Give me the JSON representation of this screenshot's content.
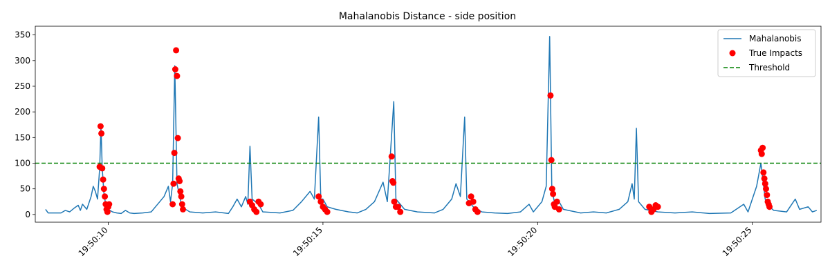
{
  "chart_data": {
    "type": "line",
    "title": "Mahalanobis Distance - side position",
    "xlabel": "",
    "ylabel": "",
    "x_unit": "time",
    "xlim": [
      "19:50:08.3",
      "19:50:26.6"
    ],
    "ylim": [
      -15,
      367
    ],
    "grid": false,
    "legend_placement": "top-right",
    "x_ticks": [
      "19:50:10",
      "19:50:15",
      "19:50:20",
      "19:50:25"
    ],
    "y_ticks": [
      0,
      50,
      100,
      150,
      200,
      250,
      300,
      350
    ],
    "colors": {
      "line": "#1f77b4",
      "impacts": "#ff0000",
      "threshold": "#008000"
    },
    "series": [
      {
        "name": "Mahalanobis",
        "kind": "line",
        "points": [
          [
            "19:50:08.54",
            10
          ],
          [
            "19:50:08.6",
            3
          ],
          [
            "19:50:08.9",
            3
          ],
          [
            "19:50:09.0",
            8
          ],
          [
            "19:50:09.1",
            5
          ],
          [
            "19:50:09.2",
            12
          ],
          [
            "19:50:09.3",
            18
          ],
          [
            "19:50:09.35",
            8
          ],
          [
            "19:50:09.4",
            20
          ],
          [
            "19:50:09.5",
            10
          ],
          [
            "19:50:09.6",
            35
          ],
          [
            "19:50:09.65",
            55
          ],
          [
            "19:50:09.7",
            45
          ],
          [
            "19:50:09.75",
            30
          ],
          [
            "19:50:09.8",
            90
          ],
          [
            "19:50:09.83",
            172
          ],
          [
            "19:50:09.86",
            90
          ],
          [
            "19:50:09.9",
            40
          ],
          [
            "19:50:09.95",
            15
          ],
          [
            "19:50:10.0",
            10
          ],
          [
            "19:50:10.1",
            5
          ],
          [
            "19:50:10.2",
            3
          ],
          [
            "19:50:10.3",
            2
          ],
          [
            "19:50:10.4",
            8
          ],
          [
            "19:50:10.5",
            3
          ],
          [
            "19:50:10.6",
            2
          ],
          [
            "19:50:10.8",
            3
          ],
          [
            "19:50:11.0",
            5
          ],
          [
            "19:50:11.1",
            15
          ],
          [
            "19:50:11.2",
            25
          ],
          [
            "19:50:11.3",
            35
          ],
          [
            "19:50:11.4",
            55
          ],
          [
            "19:50:11.45",
            25
          ],
          [
            "19:50:11.5",
            60
          ],
          [
            "19:50:11.55",
            290
          ],
          [
            "19:50:11.6",
            60
          ],
          [
            "19:50:11.65",
            40
          ],
          [
            "19:50:11.7",
            20
          ],
          [
            "19:50:11.8",
            10
          ],
          [
            "19:50:11.9",
            5
          ],
          [
            "19:50:12.2",
            3
          ],
          [
            "19:50:12.5",
            5
          ],
          [
            "19:50:12.8",
            2
          ],
          [
            "19:50:12.9",
            15
          ],
          [
            "19:50:13.0",
            30
          ],
          [
            "19:50:13.1",
            15
          ],
          [
            "19:50:13.2",
            35
          ],
          [
            "19:50:13.25",
            20
          ],
          [
            "19:50:13.3",
            133
          ],
          [
            "19:50:13.35",
            30
          ],
          [
            "19:50:13.5",
            20
          ],
          [
            "19:50:13.6",
            5
          ],
          [
            "19:50:14.0",
            3
          ],
          [
            "19:50:14.3",
            8
          ],
          [
            "19:50:14.5",
            25
          ],
          [
            "19:50:14.7",
            45
          ],
          [
            "19:50:14.8",
            30
          ],
          [
            "19:50:14.9",
            190
          ],
          [
            "19:50:14.95",
            30
          ],
          [
            "19:50:15.0",
            30
          ],
          [
            "19:50:15.1",
            15
          ],
          [
            "19:50:15.3",
            10
          ],
          [
            "19:50:15.6",
            5
          ],
          [
            "19:50:15.8",
            3
          ],
          [
            "19:50:16.0",
            10
          ],
          [
            "19:50:16.2",
            25
          ],
          [
            "19:50:16.4",
            63
          ],
          [
            "19:50:16.5",
            25
          ],
          [
            "19:50:16.65",
            220
          ],
          [
            "19:50:16.7",
            30
          ],
          [
            "19:50:16.9",
            10
          ],
          [
            "19:50:17.2",
            5
          ],
          [
            "19:50:17.6",
            3
          ],
          [
            "19:50:17.8",
            10
          ],
          [
            "19:50:18.0",
            30
          ],
          [
            "19:50:18.1",
            60
          ],
          [
            "19:50:18.2",
            35
          ],
          [
            "19:50:18.3",
            190
          ],
          [
            "19:50:18.35",
            30
          ],
          [
            "19:50:18.5",
            15
          ],
          [
            "19:50:18.7",
            5
          ],
          [
            "19:50:19.0",
            3
          ],
          [
            "19:50:19.3",
            2
          ],
          [
            "19:50:19.6",
            5
          ],
          [
            "19:50:19.8",
            20
          ],
          [
            "19:50:19.9",
            5
          ],
          [
            "19:50:20.1",
            25
          ],
          [
            "19:50:20.2",
            55
          ],
          [
            "19:50:20.28",
            347
          ],
          [
            "19:50:20.33",
            50
          ],
          [
            "19:50:20.4",
            20
          ],
          [
            "19:50:20.5",
            25
          ],
          [
            "19:50:20.6",
            10
          ],
          [
            "19:50:21.0",
            3
          ],
          [
            "19:50:21.3",
            5
          ],
          [
            "19:50:21.6",
            3
          ],
          [
            "19:50:21.9",
            10
          ],
          [
            "19:50:22.1",
            25
          ],
          [
            "19:50:22.2",
            60
          ],
          [
            "19:50:22.25",
            30
          ],
          [
            "19:50:22.3",
            168
          ],
          [
            "19:50:22.35",
            25
          ],
          [
            "19:50:22.5",
            10
          ],
          [
            "19:50:22.8",
            5
          ],
          [
            "19:50:23.2",
            3
          ],
          [
            "19:50:23.6",
            5
          ],
          [
            "19:50:24.0",
            2
          ],
          [
            "19:50:24.5",
            3
          ],
          [
            "19:50:24.8",
            20
          ],
          [
            "19:50:24.9",
            5
          ],
          [
            "19:50:25.0",
            30
          ],
          [
            "19:50:25.1",
            55
          ],
          [
            "19:50:25.2",
            100
          ],
          [
            "19:50:25.3",
            30
          ],
          [
            "19:50:25.4",
            15
          ],
          [
            "19:50:25.5",
            8
          ],
          [
            "19:50:25.8",
            5
          ],
          [
            "19:50:26.0",
            30
          ],
          [
            "19:50:26.1",
            10
          ],
          [
            "19:50:26.3",
            15
          ],
          [
            "19:50:26.4",
            5
          ],
          [
            "19:50:26.5",
            8
          ]
        ]
      },
      {
        "name": "True Impacts",
        "kind": "scatter",
        "points": [
          [
            "19:50:09.8",
            93
          ],
          [
            "19:50:09.82",
            172
          ],
          [
            "19:50:09.84",
            158
          ],
          [
            "19:50:09.86",
            90
          ],
          [
            "19:50:09.88",
            68
          ],
          [
            "19:50:09.9",
            50
          ],
          [
            "19:50:09.92",
            35
          ],
          [
            "19:50:09.94",
            20
          ],
          [
            "19:50:09.96",
            10
          ],
          [
            "19:50:09.98",
            5
          ],
          [
            "19:50:10.0",
            15
          ],
          [
            "19:50:10.02",
            20
          ],
          [
            "19:50:11.5",
            20
          ],
          [
            "19:50:11.52",
            60
          ],
          [
            "19:50:11.54",
            120
          ],
          [
            "19:50:11.56",
            283
          ],
          [
            "19:50:11.58",
            320
          ],
          [
            "19:50:11.6",
            270
          ],
          [
            "19:50:11.62",
            149
          ],
          [
            "19:50:11.64",
            70
          ],
          [
            "19:50:11.66",
            65
          ],
          [
            "19:50:11.68",
            45
          ],
          [
            "19:50:11.7",
            35
          ],
          [
            "19:50:11.72",
            20
          ],
          [
            "19:50:11.74",
            10
          ],
          [
            "19:50:13.3",
            25
          ],
          [
            "19:50:13.35",
            18
          ],
          [
            "19:50:13.4",
            10
          ],
          [
            "19:50:13.45",
            5
          ],
          [
            "19:50:13.5",
            25
          ],
          [
            "19:50:13.55",
            20
          ],
          [
            "19:50:14.9",
            35
          ],
          [
            "19:50:14.95",
            25
          ],
          [
            "19:50:15.0",
            15
          ],
          [
            "19:50:15.05",
            10
          ],
          [
            "19:50:15.1",
            5
          ],
          [
            "19:50:16.6",
            113
          ],
          [
            "19:50:16.62",
            65
          ],
          [
            "19:50:16.64",
            62
          ],
          [
            "19:50:16.66",
            25
          ],
          [
            "19:50:16.7",
            15
          ],
          [
            "19:50:16.75",
            15
          ],
          [
            "19:50:16.8",
            5
          ],
          [
            "19:50:18.4",
            22
          ],
          [
            "19:50:18.45",
            35
          ],
          [
            "19:50:18.5",
            25
          ],
          [
            "19:50:18.55",
            10
          ],
          [
            "19:50:18.6",
            5
          ],
          [
            "19:50:20.3",
            232
          ],
          [
            "19:50:20.32",
            106
          ],
          [
            "19:50:20.34",
            50
          ],
          [
            "19:50:20.36",
            40
          ],
          [
            "19:50:20.38",
            20
          ],
          [
            "19:50:20.4",
            15
          ],
          [
            "19:50:20.45",
            25
          ],
          [
            "19:50:20.5",
            10
          ],
          [
            "19:50:22.6",
            15
          ],
          [
            "19:50:22.65",
            5
          ],
          [
            "19:50:22.7",
            10
          ],
          [
            "19:50:22.75",
            18
          ],
          [
            "19:50:22.8",
            15
          ],
          [
            "19:50:25.2",
            125
          ],
          [
            "19:50:25.22",
            118
          ],
          [
            "19:50:25.24",
            130
          ],
          [
            "19:50:25.26",
            82
          ],
          [
            "19:50:25.28",
            70
          ],
          [
            "19:50:25.3",
            60
          ],
          [
            "19:50:25.32",
            50
          ],
          [
            "19:50:25.34",
            38
          ],
          [
            "19:50:25.36",
            25
          ],
          [
            "19:50:25.38",
            20
          ],
          [
            "19:50:25.4",
            15
          ]
        ]
      },
      {
        "name": "Threshold",
        "kind": "hline",
        "value": 100
      }
    ]
  }
}
